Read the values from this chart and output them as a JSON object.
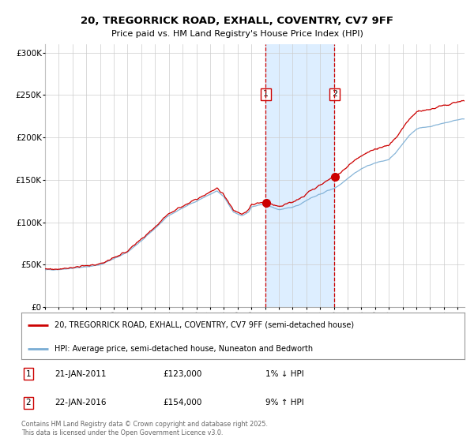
{
  "title": "20, TREGORRICK ROAD, EXHALL, COVENTRY, CV7 9FF",
  "subtitle": "Price paid vs. HM Land Registry's House Price Index (HPI)",
  "legend_entry1": "20, TREGORRICK ROAD, EXHALL, COVENTRY, CV7 9FF (semi-detached house)",
  "legend_entry2": "HPI: Average price, semi-detached house, Nuneaton and Bedworth",
  "annotation1_date": "21-JAN-2011",
  "annotation1_price": "£123,000",
  "annotation1_hpi": "1% ↓ HPI",
  "annotation2_date": "22-JAN-2016",
  "annotation2_price": "£154,000",
  "annotation2_hpi": "9% ↑ HPI",
  "footnote": "Contains HM Land Registry data © Crown copyright and database right 2025.\nThis data is licensed under the Open Government Licence v3.0.",
  "line1_color": "#cc0000",
  "line2_color": "#7aadd4",
  "shade_color": "#ddeeff",
  "vline_color": "#cc0000",
  "marker_color": "#cc0000",
  "annotation_box_color": "#cc0000",
  "background_color": "#ffffff",
  "grid_color": "#cccccc",
  "sale1_year": 2011.05,
  "sale1_value": 123000,
  "sale2_year": 2016.05,
  "sale2_value": 154000,
  "xmin": 1995.0,
  "xmax": 2025.5,
  "ymin": 0,
  "ymax": 310000,
  "hpi_anchors_t": [
    1995.0,
    1996.0,
    1997.0,
    1998.0,
    1999.0,
    2000.0,
    2001.0,
    2002.0,
    2003.0,
    2004.0,
    2005.0,
    2006.0,
    2007.0,
    2007.5,
    2008.0,
    2008.7,
    2009.3,
    2009.8,
    2010.0,
    2010.5,
    2011.0,
    2011.5,
    2012.0,
    2012.5,
    2013.0,
    2013.5,
    2014.0,
    2014.5,
    2015.0,
    2015.5,
    2016.0,
    2016.5,
    2017.0,
    2017.5,
    2018.0,
    2018.5,
    2019.0,
    2019.5,
    2020.0,
    2020.5,
    2021.0,
    2021.5,
    2022.0,
    2022.5,
    2023.0,
    2023.5,
    2024.0,
    2024.5,
    2025.3
  ],
  "hpi_anchors_v": [
    44000,
    44500,
    46000,
    47500,
    50000,
    57000,
    65000,
    78000,
    93000,
    108000,
    117000,
    125000,
    133000,
    137000,
    130000,
    112000,
    108000,
    112000,
    118000,
    120000,
    121000,
    118000,
    115000,
    116000,
    118000,
    121000,
    126000,
    130000,
    133000,
    137000,
    140000,
    145000,
    152000,
    158000,
    163000,
    167000,
    170000,
    172000,
    174000,
    182000,
    192000,
    203000,
    210000,
    212000,
    213000,
    215000,
    217000,
    219000,
    222000
  ]
}
